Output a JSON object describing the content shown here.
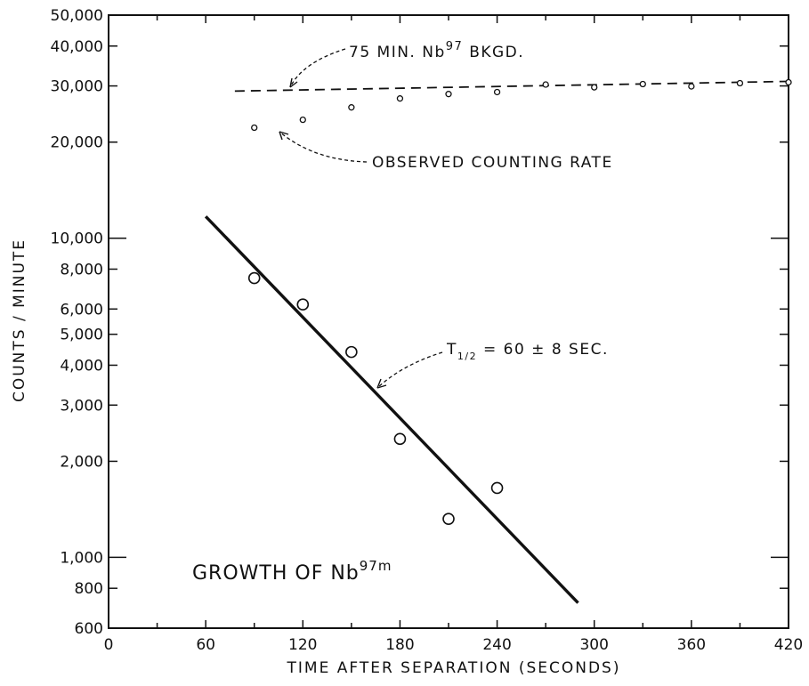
{
  "chart_data": {
    "type": "scatter",
    "title": "",
    "xlabel": "TIME AFTER SEPARATION (SECONDS)",
    "ylabel": "COUNTS / MINUTE",
    "xlim": [
      0,
      420
    ],
    "ylim": [
      600,
      50000
    ],
    "yscale": "log",
    "grid": false,
    "x_ticks": [
      "0",
      "60",
      "120",
      "180",
      "240",
      "300",
      "360",
      "420"
    ],
    "y_ticks": [
      {
        "value": 600,
        "label": "600"
      },
      {
        "value": 800,
        "label": "800"
      },
      {
        "value": 1000,
        "label": "1,000"
      },
      {
        "value": 2000,
        "label": "2,000"
      },
      {
        "value": 3000,
        "label": "3,000"
      },
      {
        "value": 4000,
        "label": "4,000"
      },
      {
        "value": 5000,
        "label": "5,000"
      },
      {
        "value": 6000,
        "label": "6,000"
      },
      {
        "value": 8000,
        "label": "8,000"
      },
      {
        "value": 10000,
        "label": "10,000"
      },
      {
        "value": 20000,
        "label": "20,000"
      },
      {
        "value": 30000,
        "label": "30,000"
      },
      {
        "value": 40000,
        "label": "40,000"
      },
      {
        "value": 50000,
        "label": "50,000"
      }
    ],
    "series": [
      {
        "name": "OBSERVED COUNTING RATE",
        "marker": "small-circle",
        "x": [
          90,
          120,
          150,
          180,
          210,
          240,
          270,
          300,
          330,
          360,
          390,
          420
        ],
        "y": [
          22200,
          23500,
          25700,
          27400,
          28300,
          28700,
          30300,
          29700,
          30400,
          29900,
          30600,
          30800
        ]
      },
      {
        "name": "GROWTH OF Nb97m",
        "marker": "large-circle",
        "x": [
          90,
          120,
          150,
          180,
          210,
          240
        ],
        "y": [
          7500,
          6200,
          4400,
          2350,
          1320,
          1650
        ]
      }
    ],
    "lines": [
      {
        "label": "75 MIN. Nb97 BKGD.",
        "style": "dashed",
        "x": [
          78,
          420
        ],
        "y": [
          28900,
          31000
        ]
      },
      {
        "label": "T1/2 = 60 ± 8 SEC.",
        "style": "solid",
        "x": [
          60,
          290
        ],
        "y": [
          11700,
          720
        ]
      }
    ],
    "annotations": {
      "bkgd": {
        "prefix": "75 MIN. Nb",
        "sup": "97",
        "suffix": " BKGD."
      },
      "observed": "OBSERVED COUNTING RATE",
      "half_life": {
        "t": "T",
        "sub": "1/2",
        "rest": " = 60 ± 8 SEC."
      },
      "growth": {
        "prefix": "GROWTH OF Nb",
        "sup": "97m"
      }
    }
  }
}
